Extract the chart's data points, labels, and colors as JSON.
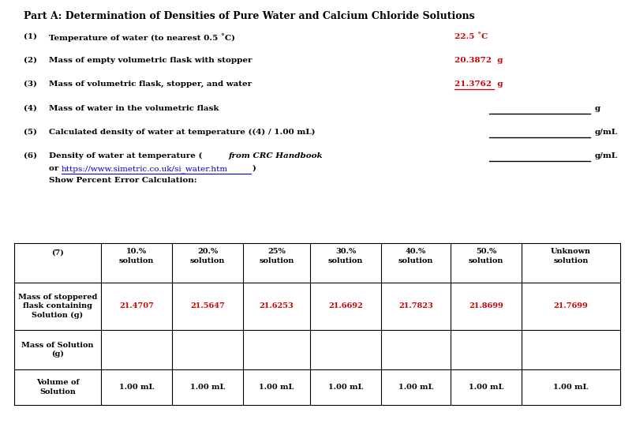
{
  "title": "Part A: Determination of Densities of Pure Water and Calcium Chloride Solutions",
  "row1_num": "(1)",
  "row1_label": "Temperature of water (to nearest 0.5 ˚C)",
  "row1_value": "22.5 ˚C",
  "row2_num": "(2)",
  "row2_label": "Mass of empty volumetric flask with stopper",
  "row2_value": "20.3872  g",
  "row3_num": "(3)",
  "row3_label": "Mass of volumetric flask, stopper, and water",
  "row3_value": "21.3762  g",
  "row4_num": "(4)",
  "row4_label": "Mass of water in the volumetric flask",
  "row4_unit": "g",
  "row5_num": "(5)",
  "row5_label": "Calculated density of water at temperature ((4) / 1.00 mL)",
  "row5_unit": "g/mL",
  "row6_num": "(6)",
  "row6_label1": "Density of water at temperature (",
  "row6_label_italic": "from CRC Handbook",
  "row6_label2": "or ",
  "row6_url": "https://www.simetric.co.uk/si_water.htm",
  "row6_close": ")",
  "row6_extra": "Show Percent Error Calculation:",
  "row6_unit": "g/mL",
  "table_col0": "(7)",
  "table_headers": [
    "10.%\nsolution",
    "20.%\nsolution",
    "25%\nsolution",
    "30.%\nsolution",
    "40.%\nsolution",
    "50.%\nsolution",
    "Unknown\nsolution"
  ],
  "table_row1_label": "Mass of stoppered\nflask containing\nSolution (g)",
  "table_row1_values": [
    "21.4707",
    "21.5647",
    "21.6253",
    "21.6692",
    "21.7823",
    "21.8699",
    "21.7699"
  ],
  "table_row2_label": "Mass of Solution\n(g)",
  "table_row3_label": "Volume of\nSolution",
  "table_row3_values": [
    "1.00 mL",
    "1.00 mL",
    "1.00 mL",
    "1.00 mL",
    "1.00 mL",
    "1.00 mL",
    "1.00 mL"
  ],
  "bg_color": "#ffffff",
  "text_color": "#000000",
  "red_color": "#cc0000",
  "blue_color": "#0000cc",
  "title_fontsize": 9.0,
  "body_fontsize": 7.5,
  "table_fontsize": 7.0
}
